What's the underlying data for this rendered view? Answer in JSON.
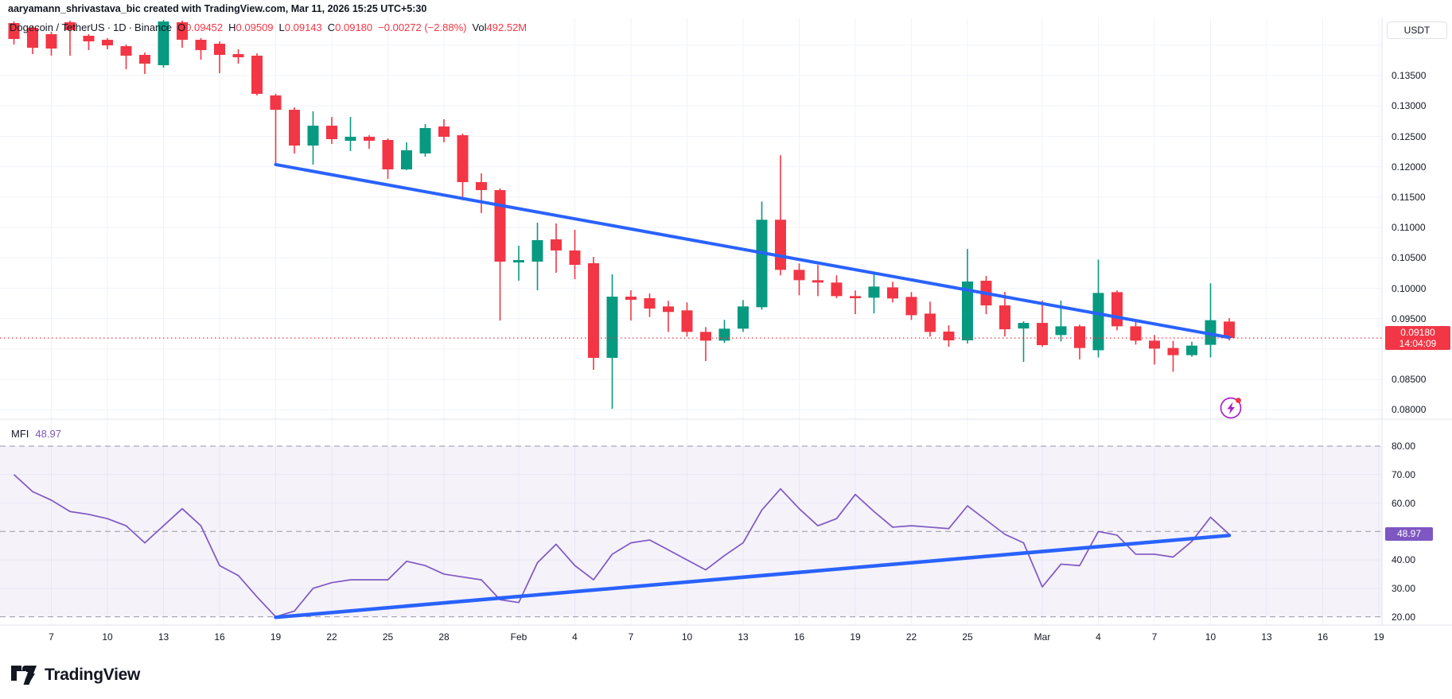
{
  "attribution": "aaryamann_shrivastava_bic created with TradingView.com, Mar 11, 2026 15:25 UTC+5:30",
  "legend": {
    "symbol": "Dogecoin / TetherUS",
    "interval": "1D",
    "exchange": "Binance",
    "separator": "·",
    "ohlc": [
      {
        "label": "O",
        "value": "0.09452"
      },
      {
        "label": "H",
        "value": "0.09509"
      },
      {
        "label": "L",
        "value": "0.09143"
      },
      {
        "label": "C",
        "value": "0.09180"
      }
    ],
    "change": "−0.00272 (−2.88%)",
    "vol_label": "Vol",
    "vol_value": "492.52M"
  },
  "price_axis": {
    "currency_button": "USDT",
    "labels": [
      "0.13500",
      "0.13000",
      "0.12500",
      "0.12000",
      "0.11500",
      "0.11000",
      "0.10500",
      "0.10000",
      "0.09500",
      "0.08500",
      "0.08000"
    ],
    "price_badge": {
      "price": "0.09180",
      "countdown": "14:04:09"
    }
  },
  "mfi_panel": {
    "label": "MFI",
    "value": "48.97",
    "badge": "48.97",
    "axis_labels": [
      "80.00",
      "70.00",
      "60.00",
      "40.00",
      "30.00",
      "20.00"
    ],
    "band_levels": [
      80,
      50,
      20
    ]
  },
  "time_axis": [
    {
      "label": "7",
      "index": 2
    },
    {
      "label": "10",
      "index": 5
    },
    {
      "label": "13",
      "index": 8
    },
    {
      "label": "16",
      "index": 11
    },
    {
      "label": "19",
      "index": 14
    },
    {
      "label": "22",
      "index": 17
    },
    {
      "label": "25",
      "index": 20
    },
    {
      "label": "28",
      "index": 23
    },
    {
      "label": "Feb",
      "index": 27
    },
    {
      "label": "4",
      "index": 30
    },
    {
      "label": "7",
      "index": 33
    },
    {
      "label": "10",
      "index": 36
    },
    {
      "label": "13",
      "index": 39
    },
    {
      "label": "16",
      "index": 42
    },
    {
      "label": "19",
      "index": 45
    },
    {
      "label": "22",
      "index": 48
    },
    {
      "label": "25",
      "index": 51
    },
    {
      "label": "Mar",
      "index": 55
    },
    {
      "label": "4",
      "index": 58
    },
    {
      "label": "7",
      "index": 61
    },
    {
      "label": "10",
      "index": 64
    },
    {
      "label": "13",
      "index": 67
    },
    {
      "label": "16",
      "index": 70
    },
    {
      "label": "19",
      "index": 73
    }
  ],
  "logo_text": "TradingView",
  "colors": {
    "up": "#089981",
    "down": "#f23645",
    "trendline": "#2962ff",
    "mfi_line": "#7e57c2",
    "grid": "#f0f3fa",
    "border": "#e0e3eb",
    "text": "#131722",
    "dashed_band": "#8b8e98",
    "band_fill": "rgba(126,87,194,0.08)",
    "price_line": "#f23645",
    "flash_icon": "#aa22c8"
  },
  "chart_data": [
    {
      "type": "candlestick",
      "title": "Dogecoin / TetherUS · 1D · Binance",
      "ylabel": "USDT",
      "ylim": [
        0.0785,
        0.1445
      ],
      "price_line": 0.0918,
      "trendline": {
        "from": {
          "index": 14,
          "price": 0.12036
        },
        "to": {
          "index": 65,
          "price": 0.0919
        }
      },
      "dates": [
        "Jan 5",
        "Jan 6",
        "Jan 7",
        "Jan 8",
        "Jan 9",
        "Jan 10",
        "Jan 11",
        "Jan 12",
        "Jan 13",
        "Jan 14",
        "Jan 15",
        "Jan 16",
        "Jan 17",
        "Jan 18",
        "Jan 19",
        "Jan 20",
        "Jan 21",
        "Jan 22",
        "Jan 23",
        "Jan 24",
        "Jan 25",
        "Jan 26",
        "Jan 27",
        "Jan 28",
        "Jan 29",
        "Jan 30",
        "Jan 31",
        "Feb 1",
        "Feb 2",
        "Feb 3",
        "Feb 4",
        "Feb 5",
        "Feb 6",
        "Feb 7",
        "Feb 8",
        "Feb 9",
        "Feb 10",
        "Feb 11",
        "Feb 12",
        "Feb 13",
        "Feb 14",
        "Feb 15",
        "Feb 16",
        "Feb 17",
        "Feb 18",
        "Feb 19",
        "Feb 20",
        "Feb 21",
        "Feb 22",
        "Feb 23",
        "Feb 24",
        "Feb 25",
        "Feb 26",
        "Feb 27",
        "Feb 28",
        "Mar 1",
        "Mar 2",
        "Mar 3",
        "Mar 4",
        "Mar 5",
        "Mar 6",
        "Mar 7",
        "Mar 8",
        "Mar 9",
        "Mar 10",
        "Mar 11"
      ],
      "ohlc": [
        [
          0.14365,
          0.14391,
          0.14011,
          0.14103
        ],
        [
          0.14286,
          0.14325,
          0.13854,
          0.13959
        ],
        [
          0.14182,
          0.14221,
          0.13828,
          0.13946
        ],
        [
          0.14378,
          0.14404,
          0.13828,
          0.14247
        ],
        [
          0.14156,
          0.14182,
          0.1392,
          0.14064
        ],
        [
          0.1409,
          0.14117,
          0.13933,
          0.13998
        ],
        [
          0.13985,
          0.14011,
          0.13605,
          0.13828
        ],
        [
          0.13841,
          0.1388,
          0.13527,
          0.13697
        ],
        [
          0.13671,
          0.14417,
          0.13631,
          0.14391
        ],
        [
          0.14378,
          0.14404,
          0.13959,
          0.1409
        ],
        [
          0.1409,
          0.14117,
          0.13763,
          0.1392
        ],
        [
          0.14025,
          0.14064,
          0.1354,
          0.13841
        ],
        [
          0.13854,
          0.13933,
          0.13697,
          0.13802
        ],
        [
          0.13828,
          0.13867,
          0.13174,
          0.132
        ],
        [
          0.13174,
          0.132,
          0.12036,
          0.12938
        ],
        [
          0.12938,
          0.12977,
          0.12218,
          0.12349
        ],
        [
          0.12349,
          0.12912,
          0.12036,
          0.12676
        ],
        [
          0.12676,
          0.1282,
          0.12375,
          0.12454
        ],
        [
          0.12427,
          0.1282,
          0.12258,
          0.12493
        ],
        [
          0.12493,
          0.12519,
          0.12297,
          0.12427
        ],
        [
          0.12441,
          0.12467,
          0.118,
          0.11957
        ],
        [
          0.11957,
          0.12402,
          0.11944,
          0.12271
        ],
        [
          0.12219,
          0.12702,
          0.12166,
          0.12637
        ],
        [
          0.12663,
          0.12781,
          0.12402,
          0.12493
        ],
        [
          0.12519,
          0.12545,
          0.11446,
          0.11747
        ],
        [
          0.11747,
          0.11891,
          0.11236,
          0.11616
        ],
        [
          0.11616,
          0.11642,
          0.09468,
          0.10438
        ],
        [
          0.10425,
          0.107,
          0.10125,
          0.10464
        ],
        [
          0.10438,
          0.1108,
          0.09967,
          0.10792
        ],
        [
          0.10805,
          0.11067,
          0.10255,
          0.10622
        ],
        [
          0.10622,
          0.10962,
          0.1015,
          0.10386
        ],
        [
          0.10412,
          0.10517,
          0.08658,
          0.08854
        ],
        [
          0.08854,
          0.10229,
          0.08016,
          0.09862
        ],
        [
          0.09862,
          0.09967,
          0.09468,
          0.0981
        ],
        [
          0.09836,
          0.09915,
          0.09527,
          0.09666
        ],
        [
          0.09701,
          0.09793,
          0.09282,
          0.0961
        ],
        [
          0.09636,
          0.09767,
          0.09204,
          0.09282
        ],
        [
          0.09282,
          0.09361,
          0.08802,
          0.09138
        ],
        [
          0.09138,
          0.09479,
          0.09099,
          0.09335
        ],
        [
          0.09335,
          0.09806,
          0.09282,
          0.09701
        ],
        [
          0.09688,
          0.11429,
          0.09649,
          0.11128
        ],
        [
          0.11128,
          0.12189,
          0.10212,
          0.10303
        ],
        [
          0.10303,
          0.10408,
          0.09884,
          0.10133
        ],
        [
          0.10133,
          0.10382,
          0.09871,
          0.10094
        ],
        [
          0.10094,
          0.10212,
          0.09836,
          0.09871
        ],
        [
          0.09871,
          0.09963,
          0.09574,
          0.09836
        ],
        [
          0.09845,
          0.10251,
          0.09587,
          0.10028
        ],
        [
          0.10015,
          0.10107,
          0.09767,
          0.09832
        ],
        [
          0.09858,
          0.09937,
          0.09479,
          0.09557
        ],
        [
          0.09583,
          0.0978,
          0.09204,
          0.09282
        ],
        [
          0.09287,
          0.09392,
          0.09038,
          0.09143
        ],
        [
          0.09143,
          0.10648,
          0.09091,
          0.10111
        ],
        [
          0.10124,
          0.10203,
          0.09574,
          0.09718
        ],
        [
          0.09718,
          0.09941,
          0.09207,
          0.09325
        ],
        [
          0.09338,
          0.09456,
          0.08788,
          0.0943
        ],
        [
          0.0943,
          0.09797,
          0.09038,
          0.09064
        ],
        [
          0.0923,
          0.09797,
          0.09125,
          0.09374
        ],
        [
          0.09374,
          0.094,
          0.08828,
          0.09017
        ],
        [
          0.0898,
          0.10473,
          0.08861,
          0.09923
        ],
        [
          0.09936,
          0.09963,
          0.09308,
          0.09374
        ],
        [
          0.09374,
          0.09466,
          0.09073,
          0.09138
        ],
        [
          0.09138,
          0.0923,
          0.08745,
          0.09007
        ],
        [
          0.09017,
          0.09134,
          0.08626,
          0.08899
        ],
        [
          0.08899,
          0.09121,
          0.08873,
          0.09056
        ],
        [
          0.09069,
          0.10081,
          0.08861,
          0.09474
        ],
        [
          0.09452,
          0.09509,
          0.09143,
          0.0918
        ]
      ]
    },
    {
      "type": "line",
      "title": "MFI",
      "current_value": 48.97,
      "ylim": [
        14,
        87
      ],
      "bands": [
        80,
        50,
        20
      ],
      "trendline": {
        "from": {
          "index": 14,
          "value": 19.8
        },
        "to": {
          "index": 65,
          "value": 48.6
        }
      },
      "values": [
        70,
        64,
        61,
        57,
        56,
        54.5,
        52,
        46,
        52,
        58,
        52,
        38,
        34.5,
        27,
        20,
        22,
        30,
        32,
        33,
        33,
        33,
        39.5,
        38,
        35,
        34,
        33,
        26,
        25,
        39,
        45.5,
        38,
        33,
        42,
        46,
        47,
        43.5,
        40,
        36.5,
        41.5,
        46,
        57.5,
        65,
        58,
        52,
        54.5,
        63,
        57,
        51.5,
        52,
        51.5,
        51,
        59,
        54,
        49,
        46,
        30.5,
        38.5,
        38,
        50,
        48.7,
        42,
        42,
        41,
        46.5,
        55,
        48.97
      ]
    }
  ]
}
